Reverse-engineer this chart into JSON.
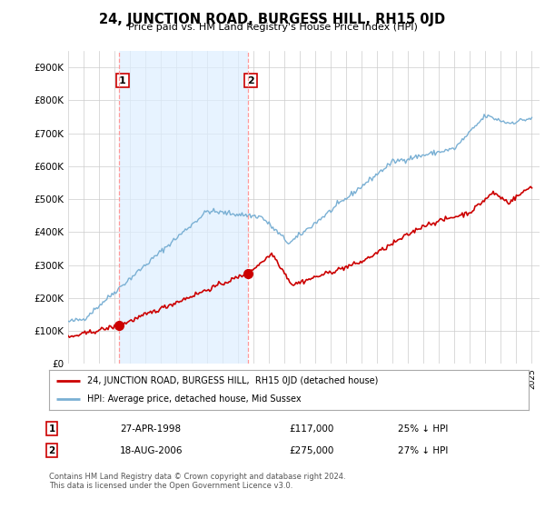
{
  "title": "24, JUNCTION ROAD, BURGESS HILL, RH15 0JD",
  "subtitle": "Price paid vs. HM Land Registry's House Price Index (HPI)",
  "ylabel_ticks": [
    "£0",
    "£100K",
    "£200K",
    "£300K",
    "£400K",
    "£500K",
    "£600K",
    "£700K",
    "£800K",
    "£900K"
  ],
  "ytick_values": [
    0,
    100000,
    200000,
    300000,
    400000,
    500000,
    600000,
    700000,
    800000,
    900000
  ],
  "ylim": [
    0,
    950000
  ],
  "xlim_start": 1995.0,
  "xlim_end": 2025.5,
  "line1_color": "#cc0000",
  "line2_color": "#7ab0d4",
  "vline_color": "#ff9999",
  "shade_color": "#ddeeff",
  "transaction1_x": 1998.32,
  "transaction1_y": 117000,
  "transaction2_x": 2006.62,
  "transaction2_y": 275000,
  "legend_line1": "24, JUNCTION ROAD, BURGESS HILL,  RH15 0JD (detached house)",
  "legend_line2": "HPI: Average price, detached house, Mid Sussex",
  "table_row1_num": "1",
  "table_row1_date": "27-APR-1998",
  "table_row1_price": "£117,000",
  "table_row1_hpi": "25% ↓ HPI",
  "table_row2_num": "2",
  "table_row2_date": "18-AUG-2006",
  "table_row2_price": "£275,000",
  "table_row2_hpi": "27% ↓ HPI",
  "footnote": "Contains HM Land Registry data © Crown copyright and database right 2024.\nThis data is licensed under the Open Government Licence v3.0.",
  "background_color": "#ffffff",
  "grid_color": "#cccccc"
}
